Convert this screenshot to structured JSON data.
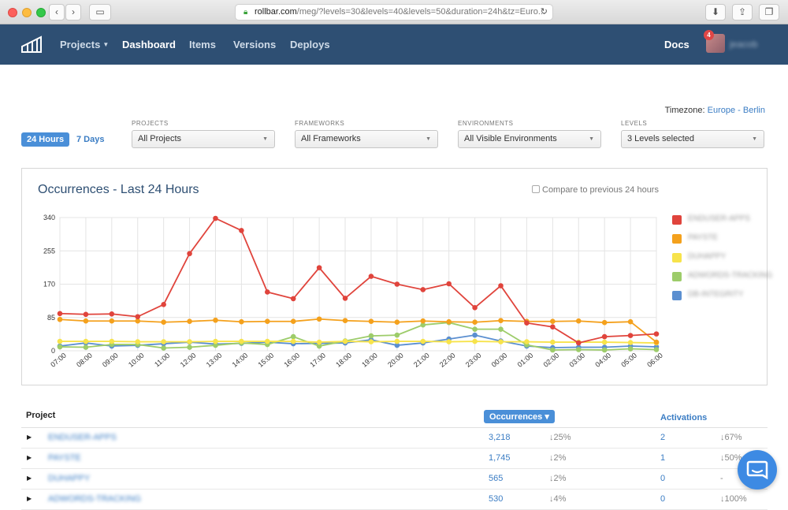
{
  "browser": {
    "url_host": "rollbar.com",
    "url_rest": "/meg/?levels=30&levels=40&levels=50&duration=24h&tz=Euro..."
  },
  "nav": {
    "projects": "Projects",
    "dashboard": "Dashboard",
    "items": "Items",
    "versions": "Versions",
    "deploys": "Deploys",
    "docs": "Docs",
    "notifications": "4",
    "username": "jeacob"
  },
  "filters": {
    "timezone_label": "Timezone:",
    "timezone_value": "Europe - Berlin",
    "range_active": "24 Hours",
    "range_other": "7 Days",
    "projects_label": "PROJECTS",
    "projects_value": "All Projects",
    "frameworks_label": "FRAMEWORKS",
    "frameworks_value": "All Frameworks",
    "environments_label": "ENVIRONMENTS",
    "environments_value": "All Visible Environments",
    "levels_label": "LEVELS",
    "levels_value": "3 Levels selected"
  },
  "chart_panel": {
    "title": "Occurrences - Last 24 Hours",
    "compare_label": "Compare to previous 24 hours"
  },
  "chart_data": {
    "type": "line",
    "x": [
      "07:00",
      "08:00",
      "09:00",
      "10:00",
      "11:00",
      "12:00",
      "13:00",
      "14:00",
      "15:00",
      "16:00",
      "17:00",
      "18:00",
      "19:00",
      "20:00",
      "21:00",
      "22:00",
      "23:00",
      "00:00",
      "01:00",
      "02:00",
      "03:00",
      "04:00",
      "05:00",
      "06:00"
    ],
    "ylim": [
      0,
      340
    ],
    "yticks": [
      0,
      85,
      170,
      255,
      340
    ],
    "grid": true,
    "legend_position": "right",
    "series": [
      {
        "name": "ENDUSER-APPS",
        "color": "#e0443c",
        "values": [
          95,
          93,
          94,
          87,
          118,
          248,
          338,
          307,
          150,
          133,
          212,
          134,
          190,
          170,
          156,
          171,
          110,
          166,
          71,
          61,
          20,
          36,
          39,
          43
        ]
      },
      {
        "name": "PAYSTE",
        "color": "#f4a11d",
        "values": [
          80,
          76,
          76,
          76,
          73,
          75,
          78,
          74,
          75,
          75,
          81,
          77,
          75,
          73,
          76,
          74,
          73,
          77,
          75,
          75,
          76,
          72,
          74,
          22
        ]
      },
      {
        "name": "DUHAPPY",
        "color": "#f7e34b",
        "values": [
          24,
          24,
          24,
          23,
          23,
          23,
          24,
          24,
          24,
          24,
          22,
          24,
          23,
          24,
          24,
          23,
          24,
          23,
          23,
          22,
          22,
          22,
          21,
          20
        ]
      },
      {
        "name": "ADWORDS-TRACKING",
        "color": "#9dcc6a",
        "values": [
          10,
          9,
          16,
          16,
          7,
          9,
          14,
          20,
          16,
          36,
          12,
          25,
          38,
          40,
          66,
          72,
          55,
          55,
          15,
          2,
          3,
          2,
          5,
          3
        ]
      },
      {
        "name": "DB-INTEGRITY",
        "color": "#5b8fd0",
        "values": [
          12,
          20,
          12,
          14,
          18,
          22,
          17,
          19,
          22,
          18,
          19,
          20,
          28,
          14,
          20,
          30,
          40,
          25,
          12,
          8,
          9,
          9,
          12,
          10
        ]
      }
    ]
  },
  "table": {
    "col_project": "Project",
    "col_occurrences": "Occurrences ▾",
    "col_activations": "Activations",
    "rows": [
      {
        "project": "ENDUSER-APPS",
        "occ": "3,218",
        "occ_delta": "↓25%",
        "act": "2",
        "act_delta": "↓67%"
      },
      {
        "project": "PAYSTE",
        "occ": "1,745",
        "occ_delta": "↓2%",
        "act": "1",
        "act_delta": "↓50%"
      },
      {
        "project": "DUHAPPY",
        "occ": "565",
        "occ_delta": "↓2%",
        "act": "0",
        "act_delta": "-"
      },
      {
        "project": "ADWORDS-TRACKING",
        "occ": "530",
        "occ_delta": "↓4%",
        "act": "0",
        "act_delta": "↓100%"
      }
    ]
  }
}
